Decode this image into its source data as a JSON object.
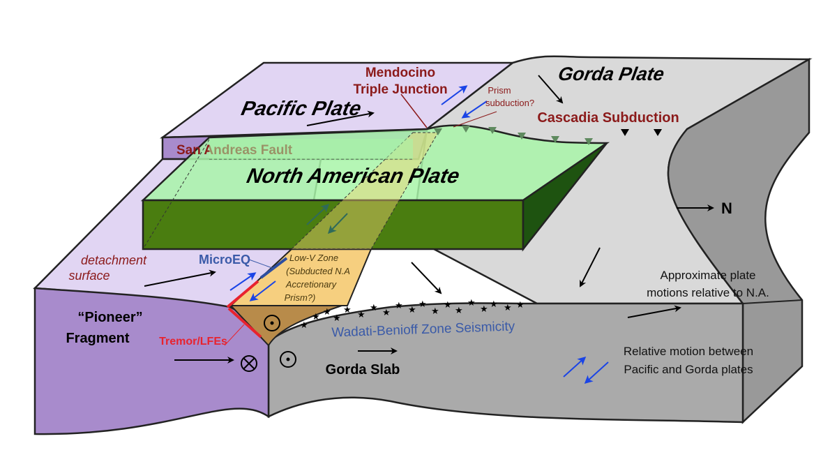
{
  "labels": {
    "mendocino_line1": "Mendocino",
    "mendocino_line2": "Triple Junction",
    "gorda_plate": "Gorda Plate",
    "prism_line1": "Prism",
    "prism_line2": "subduction?",
    "cascadia": "Cascadia Subduction",
    "pacific_plate": "Pacific Plate",
    "san_andreas": "San Andreas Fault",
    "north_american_plate": "North American Plate",
    "north": "N",
    "detachment_line1": "detachment",
    "detachment_line2": "surface",
    "microeq": "MicroEQ",
    "lowv_line1": "Low-V Zone",
    "lowv_line2": "(Subducted N.A",
    "lowv_line3": "Accretionary",
    "lowv_line4": "Prism?)",
    "pioneer_line1": "“Pioneer”",
    "pioneer_line2": "Fragment",
    "tremor": "Tremor/LFEs",
    "wadati": "Wadati-Benioff Zone Seismicity",
    "gorda_slab": "Gorda Slab"
  },
  "legend": {
    "plate_motion_line1": "Approximate plate",
    "plate_motion_line2": "motions relative to N.A.",
    "relative_motion_line1": "Relative motion between",
    "relative_motion_line2": "Pacific and Gorda plates"
  },
  "colors": {
    "pacific": "#e1d5f3",
    "pioneer": "#a88bcc",
    "north_american_top": "#a8f5a8",
    "north_american_side": "#4a7d10",
    "gorda": "#d9d9d9",
    "gorda_side": "#999999",
    "lowv_zone": "#f6cf7f",
    "label_red": "#8b1a1a",
    "microeq_blue": "#3a5aa8",
    "tremor_red": "#e8232e",
    "relative_motion_arrow": "#1a44e6"
  }
}
